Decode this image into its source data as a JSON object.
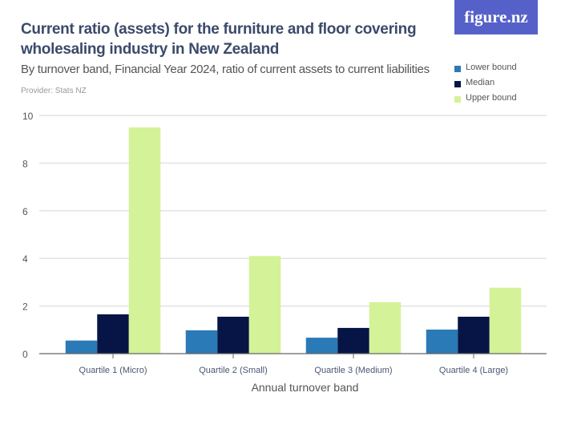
{
  "header": {
    "title": "Current ratio (assets) for the furniture and floor covering wholesaling industry in New Zealand",
    "subtitle": "By turnover band, Financial Year 2024, ratio of current assets to current liabilities",
    "provider": "Provider: Stats NZ",
    "logo": "figure.nz"
  },
  "chart_data": {
    "type": "bar",
    "categories": [
      "Quartile 1 (Micro)",
      "Quartile 2 (Small)",
      "Quartile 3 (Medium)",
      "Quartile 4 (Large)"
    ],
    "series": [
      {
        "name": "Lower bound",
        "color": "#2a7ab8",
        "values": [
          0.55,
          0.98,
          0.67,
          1.01
        ]
      },
      {
        "name": "Median",
        "color": "#061545",
        "values": [
          1.65,
          1.55,
          1.08,
          1.55
        ]
      },
      {
        "name": "Upper bound",
        "color": "#d4f297",
        "values": [
          9.5,
          4.1,
          2.16,
          2.77
        ]
      }
    ],
    "xlabel": "Annual turnover band",
    "ylabel": "",
    "ylim": [
      0,
      10
    ],
    "yticks": [
      "0",
      "2",
      "4",
      "6",
      "8",
      "10"
    ],
    "grid": true,
    "legend": "top-right"
  }
}
